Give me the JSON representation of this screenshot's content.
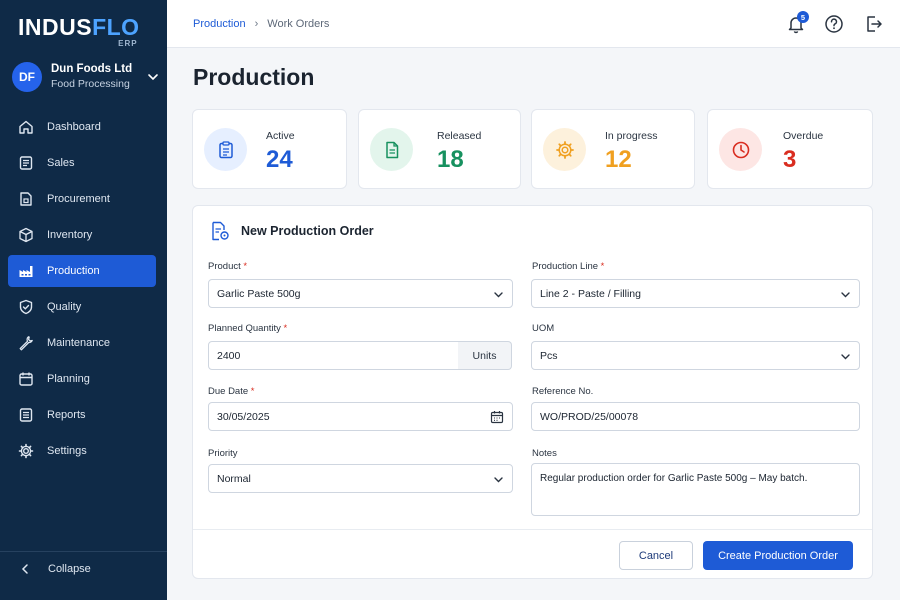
{
  "logo": {
    "main_a": "INDUS",
    "main_b": "FLO",
    "sub": "ERP"
  },
  "company": {
    "initials": "DF",
    "name": "Dun Foods Ltd",
    "division": "Food Processing"
  },
  "nav": [
    {
      "label": "Dashboard",
      "icon": "dashboard-icon"
    },
    {
      "label": "Sales",
      "icon": "sales-icon"
    },
    {
      "label": "Procurement",
      "icon": "procurement-icon"
    },
    {
      "label": "Inventory",
      "icon": "inventory-box-icon"
    },
    {
      "label": "Production",
      "icon": "factory-icon",
      "active": true
    },
    {
      "label": "Quality",
      "icon": "shield-check-icon"
    },
    {
      "label": "Maintenance",
      "icon": "wrench-icon"
    },
    {
      "label": "Planning",
      "icon": "calendar-icon"
    },
    {
      "label": "Reports",
      "icon": "reports-icon"
    },
    {
      "label": "Settings",
      "icon": "gear-icon"
    }
  ],
  "collapse_label": "Collapse",
  "breadcrumb": {
    "parent": "Production",
    "current": "Work Orders"
  },
  "notifications": {
    "count": "5"
  },
  "page_title": "Production",
  "stats": [
    {
      "label": "Active",
      "value": "24",
      "color": "#1e5bd6",
      "bg": "#e6efff",
      "icon": "clipboard-icon"
    },
    {
      "label": "Released",
      "value": "18",
      "color": "#17915f",
      "bg": "#e3f5ec",
      "icon": "document-icon"
    },
    {
      "label": "In progress",
      "value": "12",
      "color": "#f0a020",
      "bg": "#fdf1dc",
      "icon": "gear-progress-icon"
    },
    {
      "label": "Overdue",
      "value": "3",
      "color": "#d92d20",
      "bg": "#fde6e4",
      "icon": "clock-icon"
    }
  ],
  "form": {
    "title": "New Production Order",
    "product": {
      "label": "Product",
      "value": "Garlic Paste 500g"
    },
    "production_line": {
      "label": "Production Line",
      "value": "Line 2 - Paste / Filling"
    },
    "planned_quantity": {
      "label": "Planned Quantity",
      "value": "2400",
      "unit": "Units"
    },
    "uom": {
      "label": "UOM",
      "value": "Pcs"
    },
    "due_date": {
      "label": "Due Date",
      "value": "30/05/2025"
    },
    "reference_no": {
      "label": "Reference No.",
      "value": "WO/PROD/25/00078"
    },
    "priority": {
      "label": "Priority",
      "value": "Normal"
    },
    "notes": {
      "label": "Notes",
      "value": "Regular production order for Garlic Paste 500g – May batch."
    },
    "required_mark": "*",
    "cancel_label": "Cancel",
    "submit_label": "Create Production Order"
  }
}
